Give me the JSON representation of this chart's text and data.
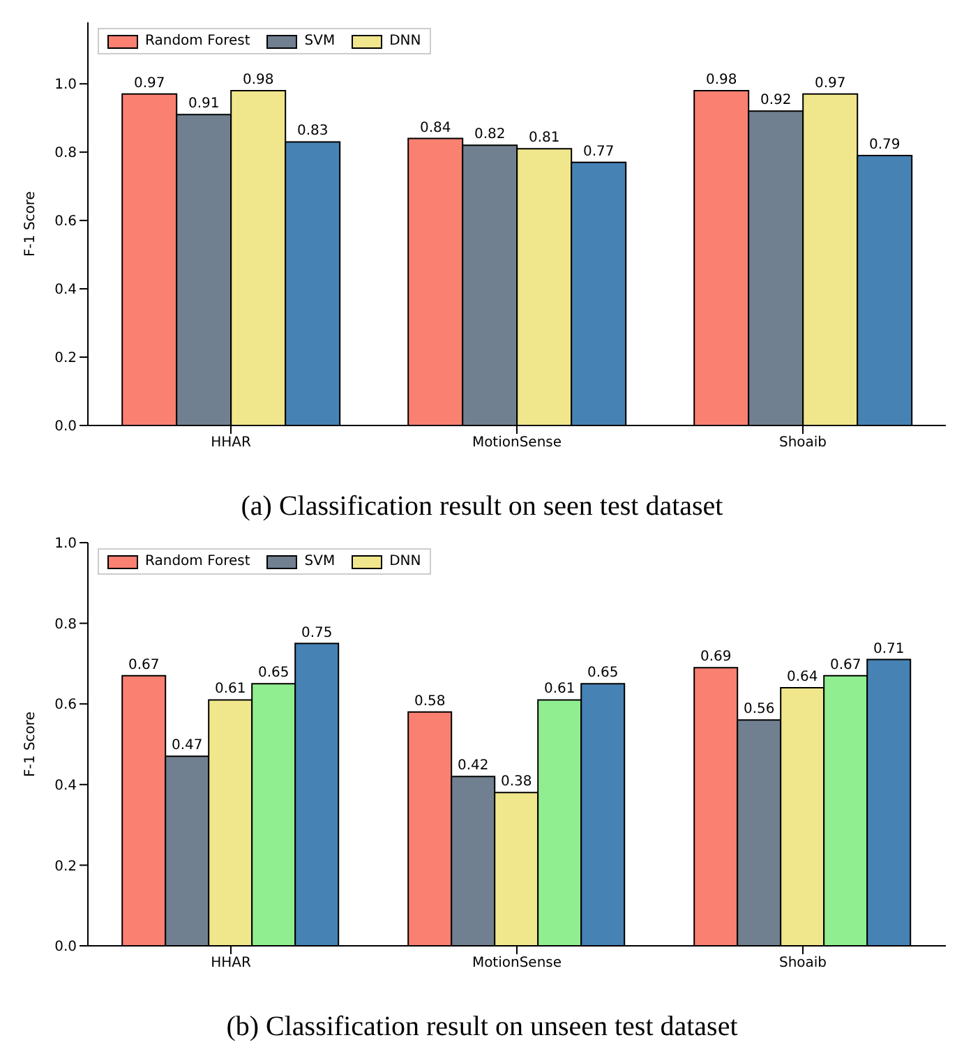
{
  "chart_data": [
    {
      "type": "bar",
      "title": "(a) Classification result on seen test dataset",
      "ylabel": "F-1 Score",
      "categories": [
        "HHAR",
        "MotionSense",
        "Shoaib"
      ],
      "series": [
        {
          "name": "Random Forest",
          "color": "#fa8072",
          "values": [
            0.97,
            0.84,
            0.98
          ]
        },
        {
          "name": "SVM",
          "color": "#708090",
          "values": [
            0.91,
            0.82,
            0.92
          ]
        },
        {
          "name": "DNN",
          "color": "#f0e68c",
          "values": [
            0.98,
            0.81,
            0.97
          ]
        },
        {
          "color": "#4682b4",
          "values": [
            0.83,
            0.77,
            0.79
          ]
        }
      ],
      "ylim": [
        0,
        1.18
      ],
      "yticks": [
        {
          "value": 0,
          "label": "0.0"
        },
        {
          "value": 0.2,
          "label": "0.2"
        },
        {
          "value": 0.4,
          "label": "0.4"
        },
        {
          "value": 0.6,
          "label": "0.6"
        },
        {
          "value": 0.8,
          "label": "0.8"
        },
        {
          "value": 1,
          "label": "1.0"
        }
      ],
      "data_labels": true,
      "legend": "top left",
      "grid": false
    },
    {
      "type": "bar",
      "title": "(b) Classification result on unseen test dataset",
      "ylabel": "F-1 Score",
      "categories": [
        "HHAR",
        "MotionSense",
        "Shoaib"
      ],
      "series": [
        {
          "name": "Random Forest",
          "color": "#fa8072",
          "values": [
            0.67,
            0.58,
            0.69
          ]
        },
        {
          "name": "SVM",
          "color": "#708090",
          "values": [
            0.47,
            0.42,
            0.56
          ]
        },
        {
          "name": "DNN",
          "color": "#f0e68c",
          "values": [
            0.61,
            0.38,
            0.64
          ]
        },
        {
          "color": "#90ee90",
          "values": [
            0.65,
            0.61,
            0.67
          ]
        },
        {
          "color": "#4682b4",
          "values": [
            0.75,
            0.65,
            0.71
          ]
        }
      ],
      "ylim": [
        0,
        1
      ],
      "yticks": [
        {
          "value": 0,
          "label": "0.0"
        },
        {
          "value": 0.2,
          "label": "0.2"
        },
        {
          "value": 0.4,
          "label": "0.4"
        },
        {
          "value": 0.6,
          "label": "0.6"
        },
        {
          "value": 0.8,
          "label": "0.8"
        },
        {
          "value": 1,
          "label": "1.0"
        }
      ],
      "data_labels": true,
      "legend": "top left",
      "grid": false
    }
  ]
}
